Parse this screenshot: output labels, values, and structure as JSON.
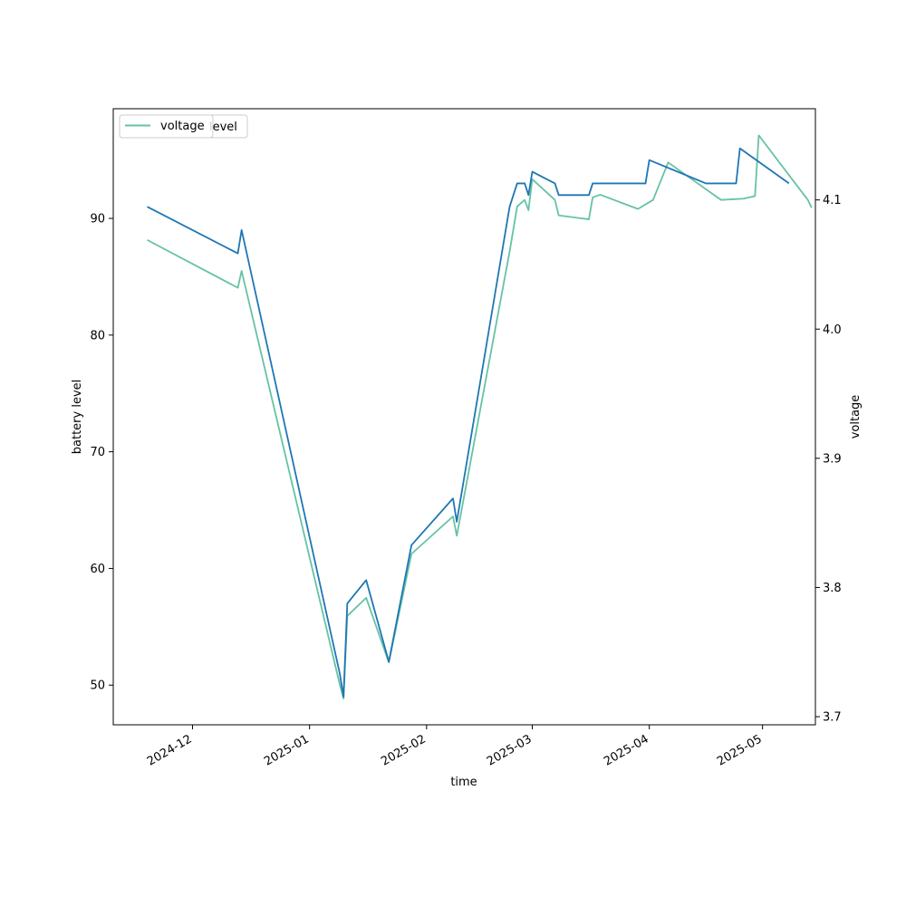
{
  "chart_data": {
    "type": "line",
    "xlabel": "time",
    "ylabel_left": "battery level",
    "ylabel_right": "voltage",
    "xlim": [
      "2024-11-10",
      "2025-05-15"
    ],
    "ylim_left": [
      46.6,
      99.4
    ],
    "ylim_right": [
      3.6937,
      4.1706
    ],
    "x_ticks": [
      "2024-12",
      "2025-01",
      "2025-02",
      "2025-03",
      "2025-04",
      "2025-05"
    ],
    "y_ticks_left": [
      "50",
      "60",
      "70",
      "80",
      "90"
    ],
    "y_ticks_right": [
      "3.7",
      "3.8",
      "3.9",
      "4.0",
      "4.1"
    ],
    "legend_location": "upper-left",
    "legend_overlap_text": "level",
    "series": [
      {
        "name": "level",
        "axis": "left",
        "color": "#1f77b4",
        "points": [
          [
            "2024-11-19",
            91
          ],
          [
            "2024-12-13",
            87
          ],
          [
            "2024-12-14",
            89
          ],
          [
            "2025-01-09",
            51
          ],
          [
            "2025-01-10",
            49
          ],
          [
            "2025-01-11",
            57
          ],
          [
            "2025-01-16",
            59
          ],
          [
            "2025-01-22",
            52
          ],
          [
            "2025-01-28",
            62
          ],
          [
            "2025-02-08",
            66
          ],
          [
            "2025-02-09",
            64
          ],
          [
            "2025-02-23",
            91
          ],
          [
            "2025-02-25",
            93
          ],
          [
            "2025-02-27",
            93
          ],
          [
            "2025-02-28",
            92
          ],
          [
            "2025-03-01",
            94
          ],
          [
            "2025-03-07",
            93
          ],
          [
            "2025-03-08",
            92
          ],
          [
            "2025-03-16",
            92
          ],
          [
            "2025-03-17",
            93
          ],
          [
            "2025-03-27",
            93
          ],
          [
            "2025-03-31",
            93
          ],
          [
            "2025-04-01",
            95
          ],
          [
            "2025-04-16",
            93
          ],
          [
            "2025-04-24",
            93
          ],
          [
            "2025-04-25",
            96
          ],
          [
            "2025-05-08",
            93
          ]
        ]
      },
      {
        "name": "voltage",
        "axis": "right",
        "color": "#66c2a5",
        "points": [
          [
            "2024-11-19",
            4.069
          ],
          [
            "2024-12-13",
            4.032
          ],
          [
            "2024-12-14",
            4.045
          ],
          [
            "2025-01-09",
            3.725
          ],
          [
            "2025-01-10",
            3.714
          ],
          [
            "2025-01-11",
            3.778
          ],
          [
            "2025-01-16",
            3.792
          ],
          [
            "2025-01-22",
            3.742
          ],
          [
            "2025-01-28",
            3.826
          ],
          [
            "2025-02-08",
            3.855
          ],
          [
            "2025-02-09",
            3.84
          ],
          [
            "2025-02-23",
            4.06
          ],
          [
            "2025-02-25",
            4.095
          ],
          [
            "2025-02-27",
            4.1
          ],
          [
            "2025-02-28",
            4.092
          ],
          [
            "2025-03-01",
            4.116
          ],
          [
            "2025-03-07",
            4.1
          ],
          [
            "2025-03-08",
            4.088
          ],
          [
            "2025-03-16",
            4.085
          ],
          [
            "2025-03-17",
            4.102
          ],
          [
            "2025-03-19",
            4.104
          ],
          [
            "2025-03-29",
            4.093
          ],
          [
            "2025-04-02",
            4.1
          ],
          [
            "2025-04-06",
            4.129
          ],
          [
            "2025-04-20",
            4.1
          ],
          [
            "2025-04-26",
            4.101
          ],
          [
            "2025-04-29",
            4.103
          ],
          [
            "2025-04-30",
            4.15
          ],
          [
            "2025-05-13",
            4.1
          ],
          [
            "2025-05-14",
            4.094
          ]
        ]
      }
    ]
  }
}
